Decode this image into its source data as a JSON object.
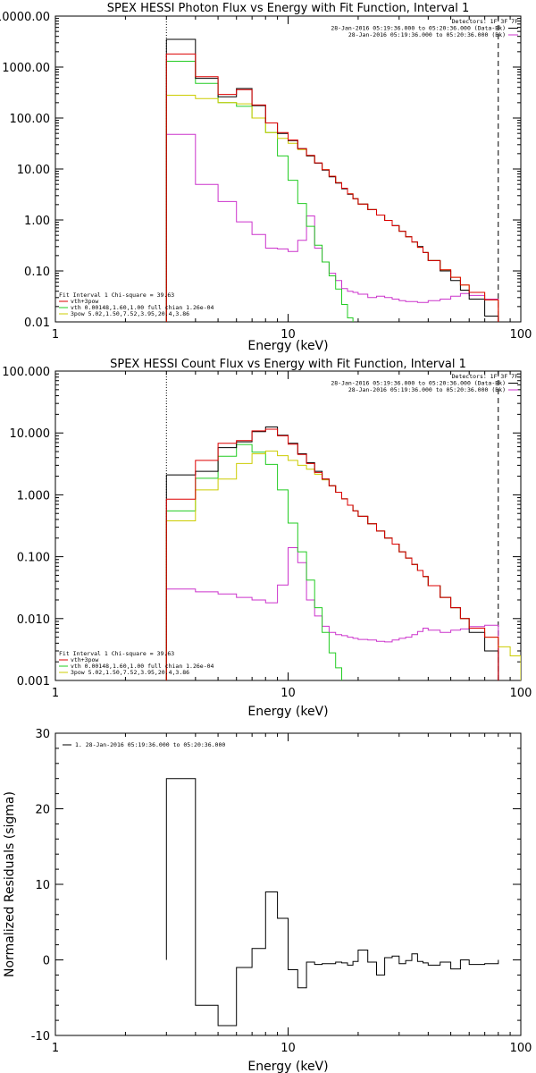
{
  "chart_data": [
    {
      "type": "line",
      "title": "SPEX HESSI Photon Flux vs Energy with Fit Function, Interval 1",
      "xlabel": "Energy (keV)",
      "ylabel": "",
      "xscale": "log",
      "yscale": "log",
      "xlim": [
        1,
        100
      ],
      "ylim": [
        0.01,
        10000
      ],
      "xticks": [
        "1",
        "10",
        "100"
      ],
      "yticks": [
        "0.01",
        "0.10",
        "1.00",
        "10.00",
        "100.00",
        "1000.00",
        "10000.00"
      ],
      "vlines": [
        {
          "x": 3,
          "style": "dotted"
        },
        {
          "x": 80,
          "style": "dashed"
        }
      ],
      "legend_top": {
        "position": "top-right",
        "header": "Detectors: 1F 3F 7F",
        "entries": [
          {
            "text": "28-Jan-2016 05:19:36.000 to 05:20:36.000 (Data-Bk)",
            "color": "#000000"
          },
          {
            "text": "28-Jan-2016 05:19:36.000 to 05:20:36.000 (Bk)",
            "color": "#cc33cc"
          }
        ]
      },
      "legend_bottom": {
        "position": "bottom-left",
        "header": "Fit Interval 1   Chi-square = 39.63",
        "entries": [
          {
            "text": "vth+3pow",
            "color": "#dd0000"
          },
          {
            "text": "vth 0.00148,1.60,1.00  full chian 1.26e-04",
            "color": "#22cc22"
          },
          {
            "text": "3pow 5.02,1.50,7.52,3.95,20.4,3.86",
            "color": "#cccc00"
          }
        ]
      },
      "edges": [
        3,
        4,
        5,
        6,
        7,
        8,
        9,
        10,
        11,
        12,
        13,
        14,
        15,
        16,
        17,
        18,
        19,
        20,
        22,
        24,
        26,
        28,
        30,
        32,
        34,
        36,
        38,
        40,
        45,
        50,
        55,
        60,
        70,
        80
      ],
      "series": [
        {
          "name": "Data-Bk",
          "color": "#000000",
          "values": [
            3500,
            600,
            260,
            380,
            175,
            80,
            50,
            36,
            25,
            18,
            13,
            9.5,
            7,
            5.3,
            4.1,
            3.2,
            2.6,
            2.05,
            1.6,
            1.25,
            0.98,
            0.78,
            0.6,
            0.47,
            0.37,
            0.3,
            0.23,
            0.16,
            0.1,
            0.065,
            0.042,
            0.028,
            0.013
          ]
        },
        {
          "name": "vth+3pow",
          "color": "#dd0000",
          "values": [
            1800,
            650,
            290,
            360,
            180,
            80,
            52,
            37,
            25,
            18.5,
            13.2,
            9.7,
            7.2,
            5.4,
            4.2,
            3.25,
            2.6,
            2.05,
            1.6,
            1.25,
            0.98,
            0.77,
            0.6,
            0.47,
            0.37,
            0.29,
            0.23,
            0.16,
            0.105,
            0.075,
            0.053,
            0.038,
            0.027
          ]
        },
        {
          "name": "vth",
          "color": "#22cc22",
          "values": [
            1300,
            480,
            200,
            170,
            100,
            52,
            18,
            6,
            2.1,
            0.75,
            0.32,
            0.15,
            0.08,
            0.044,
            0.022,
            0.012
          ]
        },
        {
          "name": "3pow",
          "color": "#cccc00",
          "values": [
            280,
            240,
            200,
            190,
            100,
            52,
            40,
            32,
            24,
            18,
            13,
            9.7,
            7.2,
            5.4,
            4.2,
            3.25,
            2.6,
            2.05,
            1.6,
            1.25,
            0.98,
            0.77,
            0.6,
            0.47,
            0.37,
            0.29,
            0.23,
            0.16,
            0.105,
            0.075,
            0.053,
            0.038,
            0.027
          ]
        },
        {
          "name": "Bk",
          "color": "#cc33cc",
          "values": [
            48,
            5,
            2.3,
            0.92,
            0.52,
            0.28,
            0.27,
            0.24,
            0.4,
            1.2,
            0.28,
            0.15,
            0.09,
            0.065,
            0.045,
            0.04,
            0.038,
            0.035,
            0.03,
            0.032,
            0.03,
            0.028,
            0.026,
            0.025,
            0.025,
            0.024,
            0.024,
            0.026,
            0.028,
            0.032,
            0.036,
            0.033,
            0.028
          ]
        }
      ]
    },
    {
      "type": "line",
      "title": "SPEX HESSI Count Flux vs Energy with Fit Function, Interval 1",
      "xlabel": "Energy (keV)",
      "ylabel": "",
      "xscale": "log",
      "yscale": "log",
      "xlim": [
        1,
        100
      ],
      "ylim": [
        0.001,
        100
      ],
      "xticks": [
        "1",
        "10",
        "100"
      ],
      "yticks": [
        "0.001",
        "0.010",
        "0.100",
        "1.000",
        "10.000",
        "100.000"
      ],
      "vlines": [
        {
          "x": 3,
          "style": "dotted"
        },
        {
          "x": 80,
          "style": "dashed"
        }
      ],
      "legend_top": {
        "position": "top-right",
        "header": "Detectors: 1F 3F 7F",
        "entries": [
          {
            "text": "28-Jan-2016 05:19:36.000 to 05:20:36.000 (Data-Bk)",
            "color": "#000000"
          },
          {
            "text": "28-Jan-2016 05:19:36.000 to 05:20:36.000 (Bk)",
            "color": "#cc33cc"
          }
        ]
      },
      "legend_bottom": {
        "position": "bottom-left",
        "header": "Fit Interval 1   Chi-square = 39.63",
        "entries": [
          {
            "text": "vth+3pow",
            "color": "#dd0000"
          },
          {
            "text": "vth 0.00148,1.60,1.00  full chian 1.26e-04",
            "color": "#22cc22"
          },
          {
            "text": "3pow 5.02,1.50,7.52,3.95,20.4,3.86",
            "color": "#cccc00"
          }
        ]
      },
      "edges": [
        3,
        4,
        5,
        6,
        7,
        8,
        9,
        10,
        11,
        12,
        13,
        14,
        15,
        16,
        17,
        18,
        19,
        20,
        22,
        24,
        26,
        28,
        30,
        32,
        34,
        36,
        38,
        40,
        45,
        50,
        55,
        60,
        70,
        80,
        90,
        100
      ],
      "series": [
        {
          "name": "Data-Bk",
          "color": "#000000",
          "values": [
            2.1,
            2.4,
            5.8,
            7.2,
            10.5,
            12.5,
            9.2,
            6.8,
            4.6,
            3.3,
            2.4,
            1.8,
            1.4,
            1.1,
            0.86,
            0.68,
            0.55,
            0.45,
            0.34,
            0.26,
            0.2,
            0.16,
            0.12,
            0.095,
            0.075,
            0.06,
            0.048,
            0.034,
            0.022,
            0.015,
            0.01,
            0.006,
            0.003
          ]
        },
        {
          "name": "vth+3pow",
          "color": "#dd0000",
          "values": [
            0.85,
            3.6,
            6.8,
            7.5,
            10.8,
            11.5,
            9,
            6.6,
            4.5,
            3.2,
            2.3,
            1.8,
            1.4,
            1.1,
            0.86,
            0.68,
            0.55,
            0.45,
            0.34,
            0.26,
            0.2,
            0.16,
            0.12,
            0.095,
            0.075,
            0.06,
            0.048,
            0.034,
            0.022,
            0.015,
            0.01,
            0.007,
            0.005
          ]
        },
        {
          "name": "vth",
          "color": "#22cc22",
          "values": [
            0.55,
            1.85,
            4.2,
            6.5,
            4.9,
            3.1,
            1.2,
            0.35,
            0.12,
            0.042,
            0.015,
            0.006,
            0.0028,
            0.0016
          ]
        },
        {
          "name": "3pow",
          "color": "#cccc00",
          "values": [
            0.38,
            1.2,
            1.8,
            3.2,
            4.6,
            5.1,
            4.3,
            3.6,
            3,
            2.6,
            2.15,
            1.75,
            1.4,
            1.1,
            0.86,
            0.68,
            0.55,
            0.45,
            0.34,
            0.26,
            0.2,
            0.16,
            0.12,
            0.095,
            0.075,
            0.06,
            0.048,
            0.034,
            0.022,
            0.015,
            0.01,
            0.007,
            0.005,
            0.0035,
            0.0025
          ]
        },
        {
          "name": "Bk",
          "color": "#cc33cc",
          "values": [
            0.03,
            0.027,
            0.025,
            0.022,
            0.02,
            0.018,
            0.035,
            0.14,
            0.08,
            0.02,
            0.011,
            0.0075,
            0.006,
            0.0055,
            0.0053,
            0.005,
            0.0048,
            0.0046,
            0.0045,
            0.0043,
            0.0042,
            0.0045,
            0.0048,
            0.005,
            0.0055,
            0.0062,
            0.007,
            0.0065,
            0.006,
            0.0065,
            0.0068,
            0.0074,
            0.0078
          ]
        }
      ]
    },
    {
      "type": "line",
      "title": "",
      "xlabel": "Energy (keV)",
      "ylabel": "Normalized Residuals (sigma)",
      "xscale": "log",
      "yscale": "linear",
      "xlim": [
        1,
        100
      ],
      "ylim": [
        -10,
        30
      ],
      "xticks": [
        "1",
        "10",
        "100"
      ],
      "yticks": [
        "-10",
        "0",
        "10",
        "20",
        "30"
      ],
      "legend_top": {
        "position": "top-left",
        "entries": [
          {
            "text": "1. 28-Jan-2016 05:19:36.000 to 05:20:36.000",
            "color": "#000000"
          }
        ]
      },
      "edges": [
        3,
        4,
        5,
        6,
        7,
        8,
        9,
        10,
        11,
        12,
        13,
        14,
        15,
        16,
        17,
        18,
        19,
        20,
        22,
        24,
        26,
        28,
        30,
        32,
        34,
        36,
        38,
        40,
        45,
        50,
        55,
        60,
        70,
        80
      ],
      "series": [
        {
          "name": "1. 28-Jan-2016 05:19:36.000 to 05:20:36.000",
          "color": "#000000",
          "values": [
            24,
            -6,
            -8.7,
            -1,
            1.5,
            9,
            5.5,
            -1.3,
            -3.7,
            -0.3,
            -0.6,
            -0.5,
            -0.5,
            -0.3,
            -0.4,
            -0.7,
            -0.2,
            1.3,
            -0.3,
            -2,
            0.3,
            0.5,
            -0.5,
            -0.1,
            0.8,
            -0.2,
            -0.4,
            -0.7,
            -0.3,
            -1.2,
            0,
            -0.6,
            -0.5
          ]
        }
      ]
    }
  ]
}
